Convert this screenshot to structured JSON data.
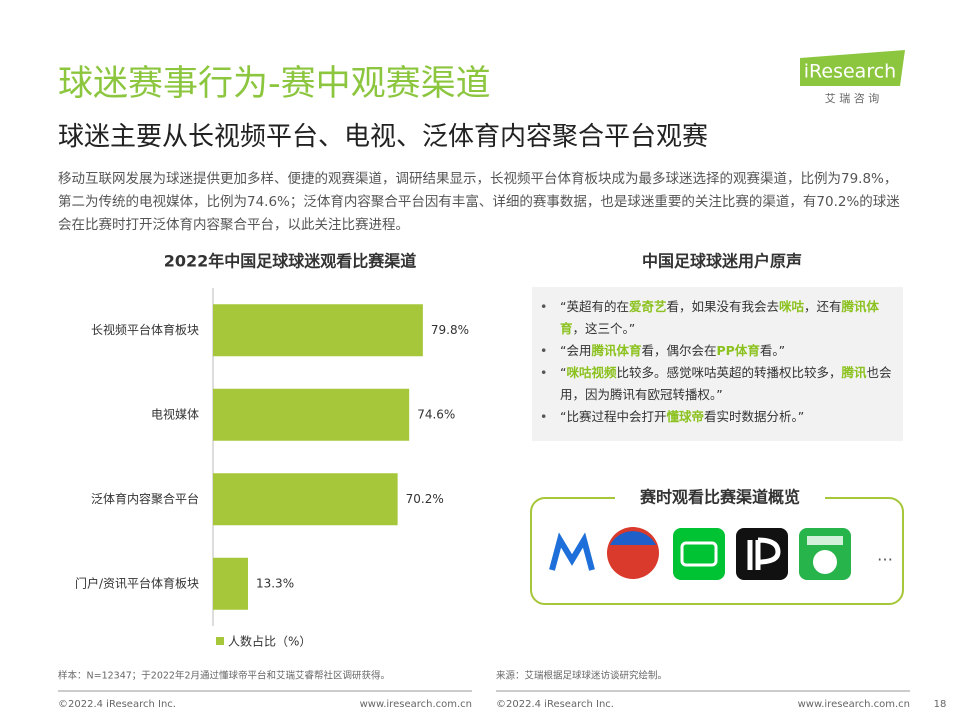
{
  "header": {
    "title": "球迷赛事行为-赛中观赛渠道",
    "subtitle": "球迷主要从长视频平台、电视、泛体育内容聚合平台观赛",
    "intro": "移动互联网发展为球迷提供更加多样、便捷的观赛渠道，调研结果显示，长视频平台体育板块成为最多球迷选择的观赛渠道，比例为79.8%，第二为传统的电视媒体，比例为74.6%；泛体育内容聚合平台因有丰富、详细的赛事数据，也是球迷重要的关注比赛的渠道，有70.2%的球迷会在比赛时打开泛体育内容聚合平台，以此关注比赛进程。"
  },
  "logo": {
    "name": "iResearch",
    "cn": "艾 瑞 咨 询"
  },
  "chart_data": {
    "type": "bar",
    "orientation": "horizontal",
    "title": "2022年中国足球球迷观看比赛渠道",
    "categories": [
      "长视频平台体育板块",
      "电视媒体",
      "泛体育内容聚合平台",
      "门户/资讯平台体育板块"
    ],
    "series": [
      {
        "name": "人数占比（%）",
        "color": "#a5c739",
        "values": [
          79.8,
          74.6,
          70.2,
          13.3
        ],
        "value_labels": [
          "79.8%",
          "74.6%",
          "70.2%",
          "13.3%"
        ]
      }
    ],
    "xlim": [
      0,
      100
    ]
  },
  "voices": {
    "title": "中国足球球迷用户原声",
    "quotes": [
      [
        "“英超有的在",
        "爱奇艺",
        "看，如果没有我会去",
        "咪咕",
        "，还有",
        "腾讯体育",
        "，这三个。”"
      ],
      [
        "“会用",
        "腾讯体育",
        "看，偶尔会在",
        "PP体育",
        "看。”"
      ],
      [
        "“",
        "咪咕视频",
        "比较多。感觉咪咕英超的转播权比较多，",
        "腾讯",
        "也会用，因为腾讯有欧冠转播权。”"
      ],
      [
        "“比赛过程中会打开",
        "懂球帝",
        "看实时数据分析。”"
      ]
    ]
  },
  "channels": {
    "title": "赛时观看比赛渠道概览",
    "more": "…"
  },
  "footer": {
    "sample": "样本：N=12347；于2022年2月通过懂球帝平台和艾瑞艾睿帮社区调研获得。",
    "source": "来源：艾瑞根据足球球迷访谈研究绘制。",
    "copyright_left": "©2022.4 iResearch Inc.",
    "site_left": "www.iresearch.com.cn",
    "copyright_right": "©2022.4 iResearch Inc.",
    "site_right": "www.iresearch.com.cn",
    "page": "18"
  }
}
